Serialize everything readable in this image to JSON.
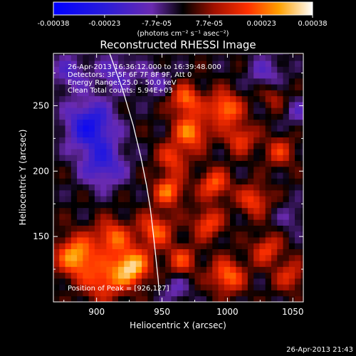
{
  "chart_data": {
    "type": "heatmap",
    "title": "Reconstructed RHESSI Image",
    "xlabel": "Heliocentric X (arcsec)",
    "ylabel": "Heliocentric Y (arcsec)",
    "xlim": [
      867,
      1058
    ],
    "ylim": [
      100,
      290
    ],
    "x_ticks": [
      {
        "value": 900,
        "label": "900"
      },
      {
        "value": 950,
        "label": "950"
      },
      {
        "value": 1000,
        "label": "1000"
      },
      {
        "value": 1050,
        "label": "1050"
      }
    ],
    "y_ticks": [
      {
        "value": 150,
        "label": "150"
      },
      {
        "value": 200,
        "label": "200"
      },
      {
        "value": 250,
        "label": "250"
      }
    ],
    "colorbar": {
      "min": -0.00038,
      "max": 0.00038,
      "ticks": [
        {
          "value": -0.00038,
          "label": "-0.00038"
        },
        {
          "value": -0.00023,
          "label": "-0.00023"
        },
        {
          "value": -7.7e-05,
          "label": "-7.7e-05"
        },
        {
          "value": 7.7e-05,
          "label": "7.7e-05"
        },
        {
          "value": 0.00023,
          "label": "0.00023"
        },
        {
          "value": 0.00038,
          "label": "0.00038"
        }
      ],
      "unit_label": "(photons cm⁻² s⁻¹ asec⁻²)"
    },
    "annotations": {
      "time_range": "26-Apr-2013 16:36:12.000 to 16:39:48.000",
      "detectors": "Detectors: 3F 5F 6F 7F 8F 9F, Att 0",
      "energy_range": "Energy Range: 25.0 - 50.0 keV",
      "algorithm": "Clean     Total counts: 5.94E+03",
      "peak": "Position of Peak = [926,127]"
    },
    "limb_curve": [
      [
        910,
        290
      ],
      [
        920,
        262
      ],
      [
        928,
        235
      ],
      [
        934,
        210
      ],
      [
        938,
        190
      ],
      [
        941,
        172
      ],
      [
        943,
        155
      ],
      [
        945,
        137
      ],
      [
        947,
        118
      ],
      [
        948,
        105
      ]
    ],
    "peak_position": [
      926,
      127
    ],
    "sources": [
      {
        "x": 926,
        "y": 127,
        "value": 0.00034,
        "r": 10
      },
      {
        "x": 885,
        "y": 135,
        "value": 0.0003,
        "r": 11
      },
      {
        "x": 912,
        "y": 150,
        "value": 0.00022,
        "r": 9
      },
      {
        "x": 905,
        "y": 115,
        "value": 0.0002,
        "r": 10
      },
      {
        "x": 945,
        "y": 155,
        "value": 0.00022,
        "r": 9
      },
      {
        "x": 955,
        "y": 185,
        "value": 0.00024,
        "r": 8
      },
      {
        "x": 972,
        "y": 230,
        "value": 0.00026,
        "r": 9
      },
      {
        "x": 968,
        "y": 255,
        "value": 0.00024,
        "r": 8
      },
      {
        "x": 998,
        "y": 248,
        "value": 0.00026,
        "r": 9
      },
      {
        "x": 1010,
        "y": 225,
        "value": 0.00018,
        "r": 8
      },
      {
        "x": 990,
        "y": 190,
        "value": 0.00022,
        "r": 8
      },
      {
        "x": 1020,
        "y": 178,
        "value": 0.0002,
        "r": 8
      },
      {
        "x": 1040,
        "y": 215,
        "value": 0.00016,
        "r": 8
      },
      {
        "x": 985,
        "y": 160,
        "value": 0.0002,
        "r": 8
      },
      {
        "x": 1000,
        "y": 120,
        "value": 0.00024,
        "r": 9
      },
      {
        "x": 965,
        "y": 132,
        "value": 0.00018,
        "r": 8
      },
      {
        "x": 1030,
        "y": 140,
        "value": 0.00018,
        "r": 8
      },
      {
        "x": 1048,
        "y": 120,
        "value": 0.00016,
        "r": 8
      },
      {
        "x": 958,
        "y": 210,
        "value": 0.00018,
        "r": 8
      },
      {
        "x": 1035,
        "y": 258,
        "value": 0.00012,
        "r": 7
      },
      {
        "x": 895,
        "y": 235,
        "value": -0.00028,
        "r": 13
      },
      {
        "x": 905,
        "y": 205,
        "value": -0.0002,
        "r": 12
      },
      {
        "x": 880,
        "y": 275,
        "value": -0.00014,
        "r": 10
      },
      {
        "x": 915,
        "y": 275,
        "value": -0.00014,
        "r": 10
      },
      {
        "x": 1030,
        "y": 275,
        "value": -0.00012,
        "r": 10
      },
      {
        "x": 960,
        "y": 110,
        "value": -0.0001,
        "r": 8
      },
      {
        "x": 1055,
        "y": 245,
        "value": -0.0001,
        "r": 8
      },
      {
        "x": 1050,
        "y": 165,
        "value": -8e-05,
        "r": 8
      },
      {
        "x": 945,
        "y": 270,
        "value": -0.0001,
        "r": 9
      }
    ]
  },
  "footer": {
    "timestamp": "26-Apr-2013 21:43"
  }
}
